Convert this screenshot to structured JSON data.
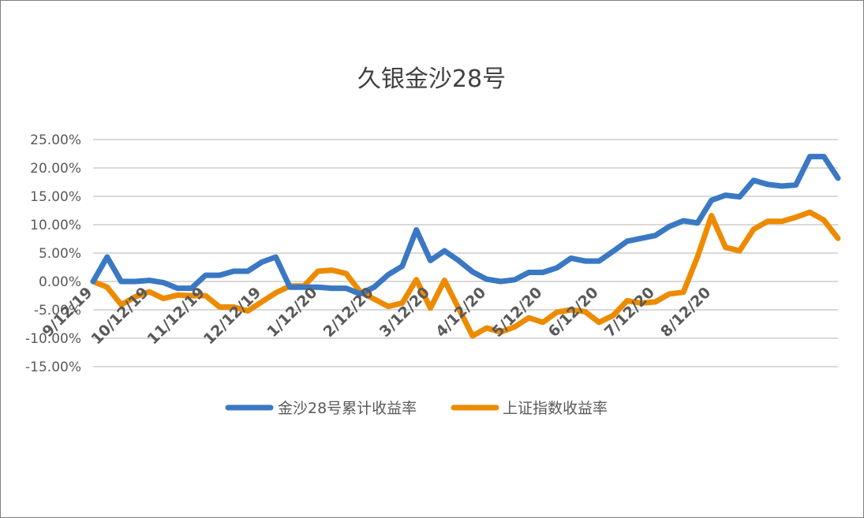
{
  "chart_data": {
    "type": "line",
    "title": "久银金沙28号",
    "xlabel": "",
    "ylabel": "",
    "ylim": [
      -0.15,
      0.25
    ],
    "y_ticks": [
      0.25,
      0.2,
      0.15,
      0.1,
      0.05,
      0.0,
      -0.05,
      -0.1,
      -0.15
    ],
    "y_tick_labels": [
      "25.00%",
      "20.00%",
      "15.00%",
      "10.00%",
      "5.00%",
      "0.00%",
      "-5.00%",
      "-10.00%",
      "-15.00%"
    ],
    "x_tick_labels": [
      "9/12/19",
      "10/12/19",
      "11/12/19",
      "12/12/19",
      "1/12/20",
      "2/12/20",
      "3/12/20",
      "4/12/20",
      "5/12/20",
      "6/12/20",
      "7/12/20",
      "8/12/20"
    ],
    "x_tick_index": [
      0,
      4,
      8,
      12,
      16,
      20,
      24,
      28,
      32,
      36,
      40,
      44
    ],
    "grid": true,
    "legend_position": "bottom",
    "series": [
      {
        "name": "金沙28号累计收益率",
        "color": "#3a78c3",
        "values": [
          0.0,
          0.043,
          0.0,
          0.0,
          0.002,
          -0.002,
          -0.012,
          -0.012,
          0.011,
          0.011,
          0.018,
          0.018,
          0.034,
          0.043,
          -0.01,
          -0.01,
          -0.01,
          -0.012,
          -0.012,
          -0.022,
          -0.01,
          0.012,
          0.027,
          0.091,
          0.037,
          0.054,
          0.037,
          0.017,
          0.004,
          0.0,
          0.003,
          0.016,
          0.016,
          0.024,
          0.041,
          0.036,
          0.036,
          0.053,
          0.071,
          0.076,
          0.081,
          0.097,
          0.107,
          0.103,
          0.143,
          0.152,
          0.149,
          0.178,
          0.171,
          0.168,
          0.17,
          0.22,
          0.22,
          0.182
        ]
      },
      {
        "name": "上证指数收益率",
        "color": "#ed8b00",
        "values": [
          0.0,
          -0.01,
          -0.041,
          -0.027,
          -0.018,
          -0.03,
          -0.024,
          -0.025,
          -0.025,
          -0.045,
          -0.045,
          -0.052,
          -0.036,
          -0.02,
          -0.008,
          -0.008,
          0.018,
          0.02,
          0.014,
          -0.018,
          -0.031,
          -0.044,
          -0.038,
          0.003,
          -0.047,
          0.002,
          -0.047,
          -0.096,
          -0.082,
          -0.089,
          -0.08,
          -0.064,
          -0.072,
          -0.054,
          -0.05,
          -0.053,
          -0.072,
          -0.06,
          -0.034,
          -0.038,
          -0.036,
          -0.022,
          -0.019,
          0.043,
          0.116,
          0.06,
          0.054,
          0.092,
          0.106,
          0.106,
          0.113,
          0.122,
          0.108,
          0.076
        ]
      }
    ]
  }
}
